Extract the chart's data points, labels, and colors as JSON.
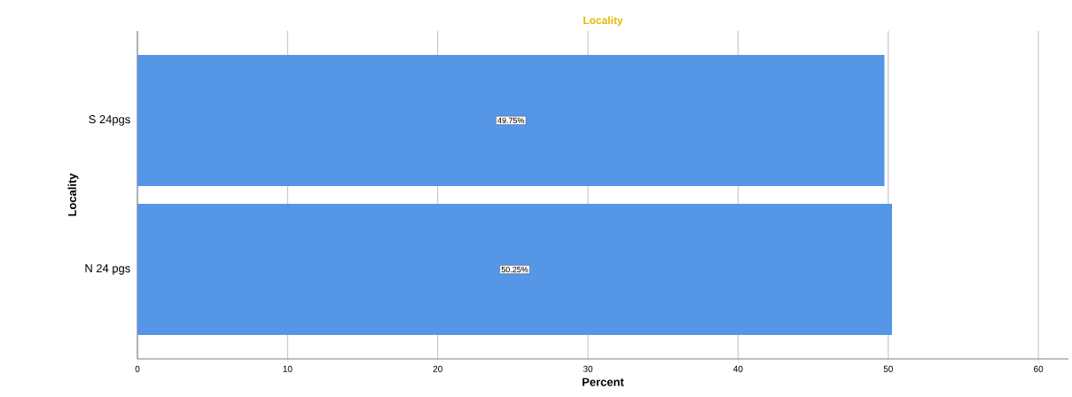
{
  "chart_data": {
    "type": "bar",
    "orientation": "horizontal",
    "title": "Locality",
    "xlabel": "Percent",
    "ylabel": "Locality",
    "categories": [
      "S 24pgs",
      "N 24 pgs"
    ],
    "values": [
      49.75,
      50.25
    ],
    "value_labels": [
      "49.75%",
      "50.25%"
    ],
    "color": "#5596e6",
    "xlim": [
      0,
      62
    ],
    "xticks": [
      0,
      10,
      20,
      30,
      40,
      50,
      60
    ],
    "grid": "x"
  }
}
